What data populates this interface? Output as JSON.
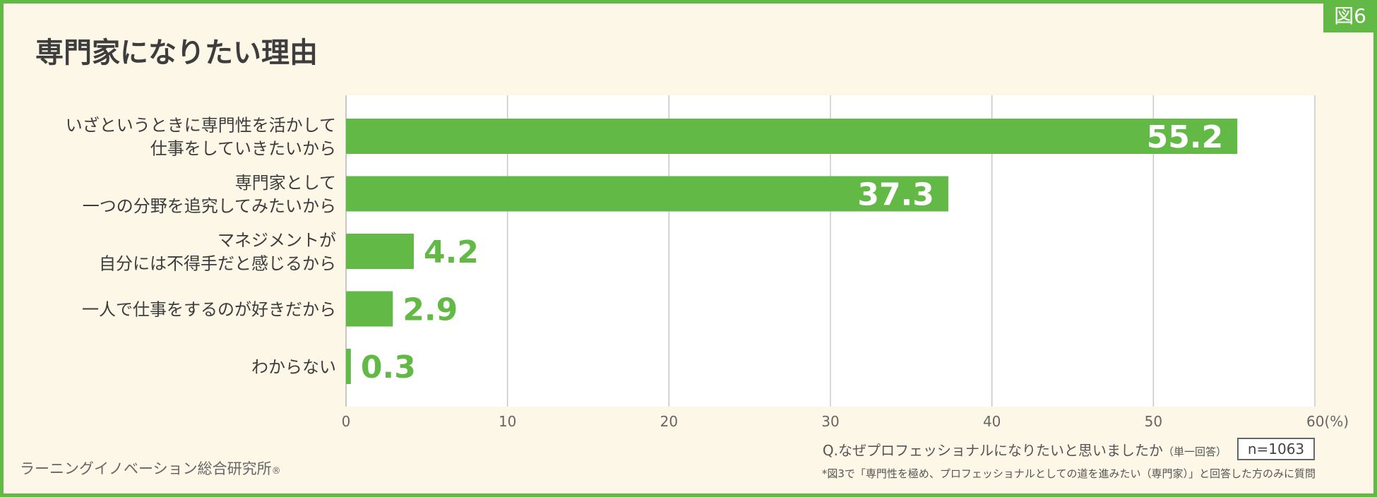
{
  "figure_tag": "図6",
  "chart_data": {
    "type": "bar",
    "orientation": "horizontal",
    "title": "専門家になりたい理由",
    "categories": [
      [
        "いざというときに専門性を活かして",
        "仕事をしていきたいから"
      ],
      [
        "専門家として",
        "一つの分野を追究してみたいから"
      ],
      [
        "マネジメントが",
        "自分には不得手だと感じるから"
      ],
      [
        "一人で仕事をするのが好きだから"
      ],
      [
        "わからない"
      ]
    ],
    "values": [
      55.2,
      37.3,
      4.2,
      2.9,
      0.3
    ],
    "value_labels": [
      "55.2",
      "37.3",
      "4.2",
      "2.9",
      "0.3"
    ],
    "xlim": [
      0,
      60
    ],
    "ticks": [
      0,
      10,
      20,
      30,
      40,
      50,
      60
    ],
    "tick_labels": [
      "0",
      "10",
      "20",
      "30",
      "40",
      "50",
      "60(%)"
    ],
    "grid": true,
    "bar_color": "#63b946",
    "gridline_color": "#c8c8c8"
  },
  "question": "Q.なぜプロフェッショナルになりたいと思いましたか",
  "answer_type": "（単一回答）",
  "sample_size": "n=1063",
  "note": "*図3で「専門性を極め、プロフェッショナルとしての道を進みたい（専門家）」と回答した方のみに質問",
  "organization": "ラーニングイノベーション総合研究所",
  "registered_mark": "®"
}
